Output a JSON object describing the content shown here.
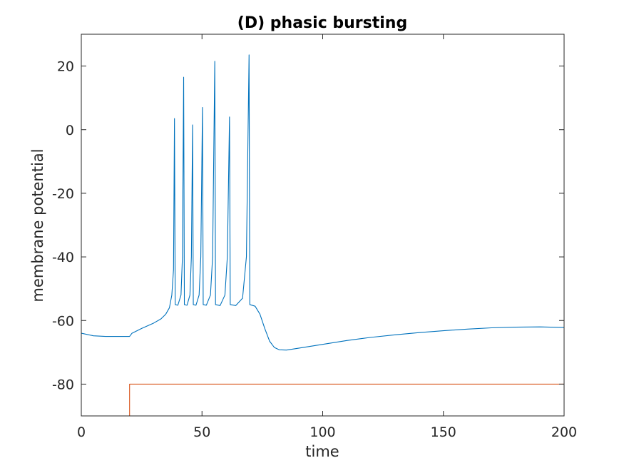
{
  "chart_data": {
    "type": "line",
    "title": "(D) phasic bursting",
    "xlabel": "time",
    "ylabel": "membrane potential",
    "xlim": [
      0,
      200
    ],
    "ylim": [
      -90,
      30
    ],
    "xticks": [
      0,
      50,
      100,
      150,
      200
    ],
    "yticks": [
      20,
      0,
      -20,
      -40,
      -60,
      -80
    ],
    "grid": false,
    "legend": "none",
    "colors": {
      "series1": "#0072BD",
      "series2": "#D95319",
      "axes": "#262626"
    },
    "series": [
      {
        "values_xy": [
          [
            0,
            -64.0
          ],
          [
            5,
            -64.8
          ],
          [
            10,
            -65.0
          ],
          [
            15,
            -65.0
          ],
          [
            20,
            -65.0
          ],
          [
            21,
            -64.0
          ],
          [
            25,
            -62.5
          ],
          [
            30,
            -60.8
          ],
          [
            33,
            -59.5
          ],
          [
            35,
            -58.0
          ],
          [
            36.5,
            -56.0
          ],
          [
            37.5,
            -52.0
          ],
          [
            38.2,
            -44.0
          ],
          [
            38.6,
            3.5
          ],
          [
            38.9,
            -55.0
          ],
          [
            40,
            -55.2
          ],
          [
            41.3,
            -52.0
          ],
          [
            41.9,
            -40.0
          ],
          [
            42.4,
            16.5
          ],
          [
            42.7,
            -55.0
          ],
          [
            43.8,
            -55.2
          ],
          [
            45,
            -52.0
          ],
          [
            45.6,
            -40.0
          ],
          [
            46.1,
            1.5
          ],
          [
            46.4,
            -55.0
          ],
          [
            47.5,
            -55.2
          ],
          [
            48.8,
            -52.0
          ],
          [
            49.5,
            -40.0
          ],
          [
            50.2,
            7.0
          ],
          [
            50.5,
            -55.0
          ],
          [
            51.8,
            -55.2
          ],
          [
            53.5,
            -52.0
          ],
          [
            54.4,
            -40.0
          ],
          [
            55.3,
            21.5
          ],
          [
            55.6,
            -55.0
          ],
          [
            57.5,
            -55.3
          ],
          [
            59.5,
            -52.0
          ],
          [
            60.5,
            -40.0
          ],
          [
            61.4,
            4.0
          ],
          [
            61.7,
            -55.0
          ],
          [
            64,
            -55.3
          ],
          [
            66.8,
            -53.0
          ],
          [
            68.4,
            -40.0
          ],
          [
            69.5,
            23.5
          ],
          [
            69.8,
            -55.0
          ],
          [
            72,
            -55.5
          ],
          [
            74,
            -58.0
          ],
          [
            76,
            -62.5
          ],
          [
            78,
            -66.5
          ],
          [
            80,
            -68.5
          ],
          [
            82,
            -69.2
          ],
          [
            85,
            -69.3
          ],
          [
            90,
            -68.7
          ],
          [
            100,
            -67.5
          ],
          [
            110,
            -66.3
          ],
          [
            120,
            -65.3
          ],
          [
            130,
            -64.5
          ],
          [
            140,
            -63.8
          ],
          [
            150,
            -63.2
          ],
          [
            160,
            -62.7
          ],
          [
            170,
            -62.3
          ],
          [
            180,
            -62.1
          ],
          [
            190,
            -62.0
          ],
          [
            200,
            -62.2
          ]
        ]
      },
      {
        "values_xy": [
          [
            0,
            -90
          ],
          [
            20,
            -90
          ],
          [
            20,
            -80
          ],
          [
            200,
            -80
          ]
        ]
      }
    ]
  }
}
